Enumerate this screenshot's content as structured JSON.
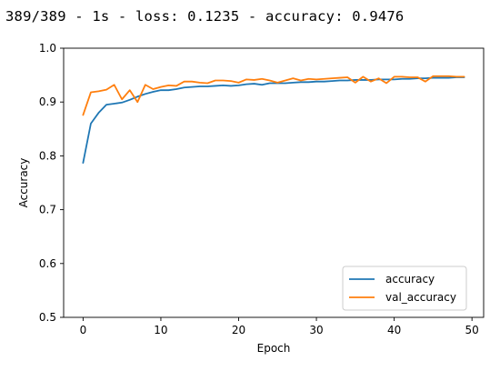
{
  "output": {
    "log_line": "389/389 - 1s - loss: 0.1235 - accuracy: 0.9476"
  },
  "colors": {
    "accuracy": "#1f77b4",
    "val_accuracy": "#ff7f0e"
  },
  "chart_data": {
    "type": "line",
    "title": "",
    "xlabel": "Epoch",
    "ylabel": "Accuracy",
    "xlim": [
      -2.5,
      51.5
    ],
    "ylim": [
      0.5,
      1.0
    ],
    "x_ticks": [
      0,
      10,
      20,
      30,
      40,
      50
    ],
    "y_ticks": [
      0.5,
      0.6,
      0.7,
      0.8,
      0.9,
      1.0
    ],
    "y_tick_labels": [
      "0.5",
      "0.6",
      "0.7",
      "0.8",
      "0.9",
      "1.0"
    ],
    "grid": false,
    "legend_position": "lower-right",
    "x": [
      0,
      1,
      2,
      3,
      4,
      5,
      6,
      7,
      8,
      9,
      10,
      11,
      12,
      13,
      14,
      15,
      16,
      17,
      18,
      19,
      20,
      21,
      22,
      23,
      24,
      25,
      26,
      27,
      28,
      29,
      30,
      31,
      32,
      33,
      34,
      35,
      36,
      37,
      38,
      39,
      40,
      41,
      42,
      43,
      44,
      45,
      46,
      47,
      48,
      49
    ],
    "series": [
      {
        "name": "accuracy",
        "values": [
          0.787,
          0.86,
          0.88,
          0.895,
          0.897,
          0.899,
          0.904,
          0.91,
          0.915,
          0.919,
          0.922,
          0.922,
          0.924,
          0.927,
          0.928,
          0.929,
          0.929,
          0.93,
          0.931,
          0.93,
          0.931,
          0.933,
          0.934,
          0.932,
          0.935,
          0.935,
          0.935,
          0.936,
          0.937,
          0.937,
          0.938,
          0.938,
          0.939,
          0.94,
          0.94,
          0.941,
          0.941,
          0.941,
          0.942,
          0.942,
          0.942,
          0.943,
          0.943,
          0.944,
          0.944,
          0.945,
          0.945,
          0.945,
          0.946,
          0.946
        ]
      },
      {
        "name": "val_accuracy",
        "values": [
          0.876,
          0.918,
          0.92,
          0.923,
          0.932,
          0.905,
          0.922,
          0.9,
          0.932,
          0.924,
          0.928,
          0.931,
          0.93,
          0.938,
          0.938,
          0.936,
          0.935,
          0.94,
          0.94,
          0.939,
          0.936,
          0.942,
          0.941,
          0.943,
          0.94,
          0.936,
          0.94,
          0.944,
          0.94,
          0.943,
          0.942,
          0.943,
          0.944,
          0.945,
          0.946,
          0.936,
          0.947,
          0.938,
          0.944,
          0.935,
          0.947,
          0.947,
          0.946,
          0.946,
          0.938,
          0.948,
          0.948,
          0.948,
          0.947,
          0.947
        ]
      }
    ]
  }
}
